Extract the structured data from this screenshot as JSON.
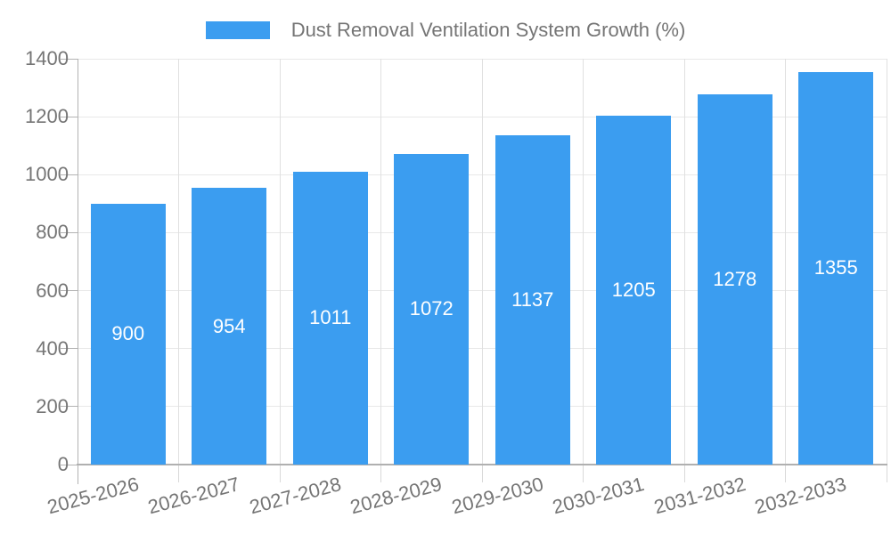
{
  "legend": {
    "label": "Dust Removal Ventilation System Growth (%)"
  },
  "chart_data": {
    "type": "bar",
    "title": "Dust Removal Ventilation System Growth (%)",
    "categories": [
      "2025-2026",
      "2026-2027",
      "2027-2028",
      "2028-2029",
      "2029-2030",
      "2030-2031",
      "2031-2032",
      "2032-2033"
    ],
    "values": [
      900,
      954,
      1011,
      1072,
      1137,
      1205,
      1278,
      1355
    ],
    "xlabel": "",
    "ylabel": "",
    "ylim": [
      0,
      1400
    ],
    "ytick_interval": 200,
    "yticks": [
      0,
      200,
      400,
      600,
      800,
      1000,
      1200,
      1400
    ],
    "grid": true,
    "legend_position": "top",
    "bar_color": "#3b9df0",
    "value_label_color": "#ffffff",
    "axis_text_color": "#757575",
    "gridline_h_color": "#e8e8e8",
    "gridline_v_color": "#e0e0e0",
    "axis_line_color": "#b3b3b3",
    "baseline_color": "#b0b0b0",
    "xtick_color": "#d9d9d9",
    "background_color": "#ffffff"
  }
}
